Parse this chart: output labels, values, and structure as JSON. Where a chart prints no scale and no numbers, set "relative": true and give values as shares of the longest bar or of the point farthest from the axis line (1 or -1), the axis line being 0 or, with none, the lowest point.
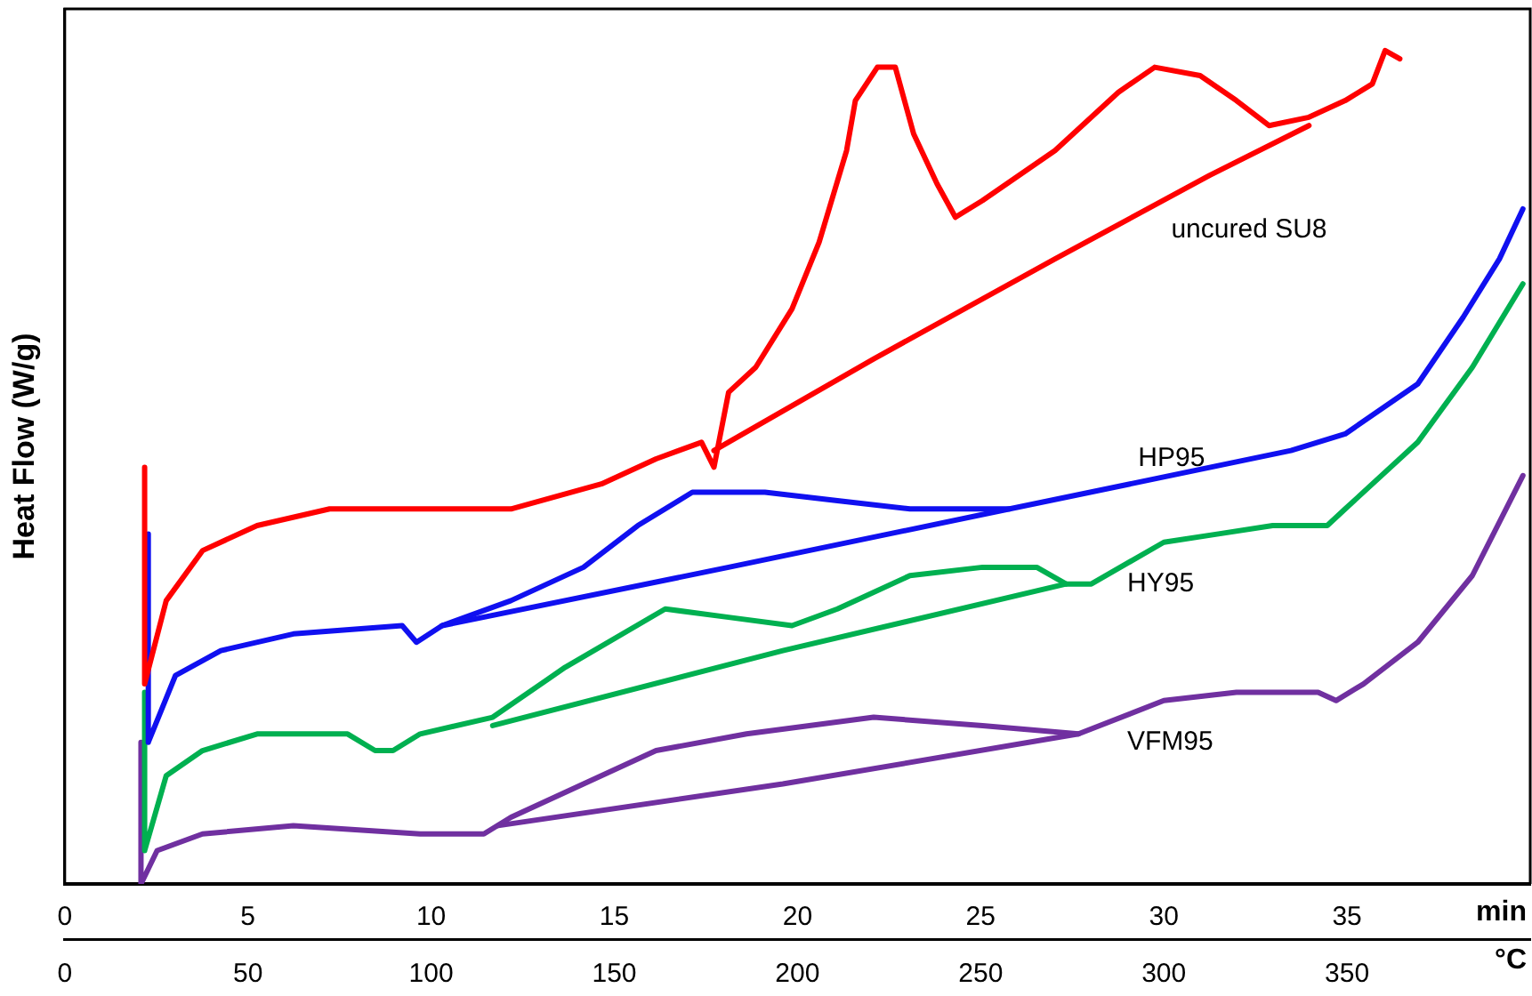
{
  "chart_data": {
    "type": "line",
    "ylabel": "Heat Flow (W/g)",
    "xlabel": "min",
    "x2label": "°C",
    "relative": true,
    "grid": false,
    "legend": false,
    "marker": "none",
    "line_style": "solid",
    "xlim": [
      0,
      40
    ],
    "xticks": [
      0,
      5,
      10,
      15,
      20,
      25,
      30,
      35
    ],
    "x2lim": [
      0,
      400
    ],
    "x2ticks": [
      0,
      50,
      100,
      150,
      200,
      250,
      300,
      350
    ],
    "series": [
      {
        "color": "#ff0000",
        "x": [
          2.18,
          2.18,
          2.77,
          3.76,
          5.25,
          7.23,
          9.7,
          12.18,
          14.65,
          16.14,
          17.38,
          17.72,
          18.12,
          18.86,
          19.85,
          20.59,
          21.34,
          21.58,
          22.18,
          22.67,
          23.17,
          23.81,
          24.31,
          25.05,
          27.03,
          28.76,
          29.75,
          30.99,
          31.98,
          32.87,
          33.96,
          34.95,
          35.69,
          36.04,
          36.44
        ],
        "values": [
          0.5,
          0.24,
          0.34,
          0.4,
          0.43,
          0.45,
          0.45,
          0.45,
          0.48,
          0.51,
          0.53,
          0.5,
          0.59,
          0.62,
          0.69,
          0.77,
          0.88,
          0.94,
          0.98,
          0.98,
          0.9,
          0.84,
          0.8,
          0.82,
          0.88,
          0.95,
          0.98,
          0.97,
          0.94,
          0.91,
          0.92,
          0.94,
          0.96,
          1,
          0.99
        ]
      },
      {
        "name": "uncured SU8",
        "color": "#ff0000",
        "x": [
          33.96,
          31.24,
          27.03,
          22.08,
          17.72
        ],
        "values": [
          0.91,
          0.85,
          0.75,
          0.63,
          0.52
        ]
      },
      {
        "color": "#1010f0",
        "x": [
          2.28,
          2.28,
          3.02,
          4.26,
          6.24,
          9.21,
          9.6,
          10.3,
          12.18,
          14.16,
          15.64,
          17.13,
          19.11,
          21.09,
          23.07,
          25.79
        ],
        "values": [
          0.42,
          0.17,
          0.25,
          0.28,
          0.3,
          0.31,
          0.29,
          0.31,
          0.34,
          0.38,
          0.43,
          0.47,
          0.47,
          0.46,
          0.45,
          0.45
        ]
      },
      {
        "name": "HP95",
        "color": "#1010f0",
        "x": [
          10.3,
          18.12,
          25.79,
          33.47,
          34.95,
          36.93,
          38.17,
          39.16,
          39.8
        ],
        "values": [
          0.31,
          0.38,
          0.45,
          0.52,
          0.54,
          0.6,
          0.68,
          0.75,
          0.81
        ]
      },
      {
        "name": "HY95",
        "color": "#00b050",
        "x": [
          2.18,
          2.18,
          2.77,
          3.76,
          5.25,
          7.72,
          8.47,
          8.96,
          9.7,
          11.68,
          13.66,
          16.39,
          18.12,
          19.85,
          21.09,
          23.07,
          25.05,
          26.53,
          27.33
        ],
        "values": [
          0.23,
          0.04,
          0.13,
          0.16,
          0.18,
          0.18,
          0.16,
          0.16,
          0.18,
          0.2,
          0.26,
          0.33,
          0.32,
          0.31,
          0.33,
          0.37,
          0.38,
          0.38,
          0.36
        ]
      },
      {
        "color": "#00b050",
        "x": [
          11.68,
          19.6,
          27.33,
          28.02,
          30,
          31.49,
          32.97,
          34.21,
          34.46,
          34.95,
          36.93,
          38.42,
          39.8
        ],
        "values": [
          0.19,
          0.28,
          0.36,
          0.36,
          0.41,
          0.42,
          0.43,
          0.43,
          0.43,
          0.45,
          0.53,
          0.62,
          0.72
        ]
      },
      {
        "name": "VFM95",
        "color": "#7030a0",
        "x": [
          2.08,
          2.08,
          2.52,
          3.76,
          6.24,
          9.7,
          11.44,
          12.18,
          14.16,
          16.14,
          18.61,
          22.08,
          25.05,
          27.67
        ],
        "values": [
          0.17,
          0,
          0.04,
          0.06,
          0.07,
          0.06,
          0.06,
          0.08,
          0.12,
          0.16,
          0.18,
          0.2,
          0.19,
          0.18
        ]
      },
      {
        "color": "#7030a0",
        "x": [
          11.83,
          19.6,
          27.67,
          30,
          31.98,
          34.21,
          34.7,
          35.45,
          36.93,
          38.42,
          39.8
        ],
        "values": [
          0.07,
          0.12,
          0.18,
          0.22,
          0.23,
          0.23,
          0.22,
          0.24,
          0.29,
          0.37,
          0.49
        ]
      }
    ]
  }
}
